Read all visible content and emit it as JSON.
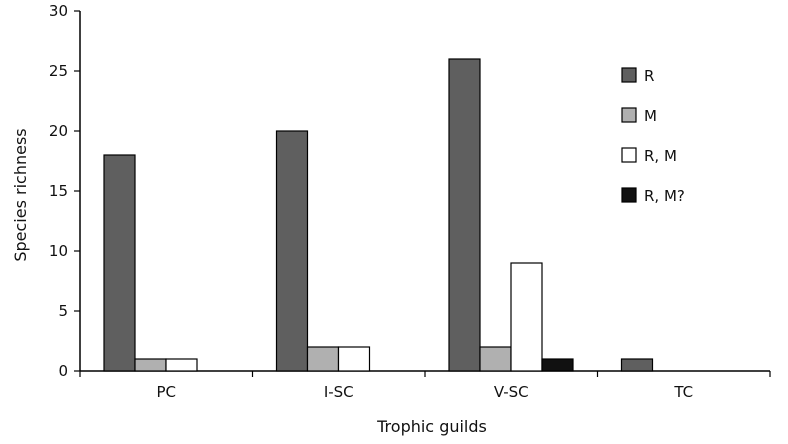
{
  "chart_data": {
    "type": "bar",
    "categories": [
      "PC",
      "I-SC",
      "V-SC",
      "TC"
    ],
    "series": [
      {
        "name": "R",
        "color": "#5f5f5f",
        "values": [
          18,
          20,
          26,
          1
        ]
      },
      {
        "name": "M",
        "color": "#b0b0b0",
        "values": [
          1,
          2,
          2,
          0
        ]
      },
      {
        "name": "R, M",
        "color": "#ffffff",
        "values": [
          1,
          2,
          9,
          0
        ]
      },
      {
        "name": "R, M?",
        "color": "#111111",
        "values": [
          0,
          0,
          1,
          0
        ]
      }
    ],
    "title": "",
    "xlabel": "Trophic guilds",
    "ylabel": "Species richness",
    "ylim": [
      0,
      30
    ],
    "yticks": [
      0,
      5,
      10,
      15,
      20,
      25,
      30
    ],
    "grid": false,
    "legend_position": "right"
  }
}
